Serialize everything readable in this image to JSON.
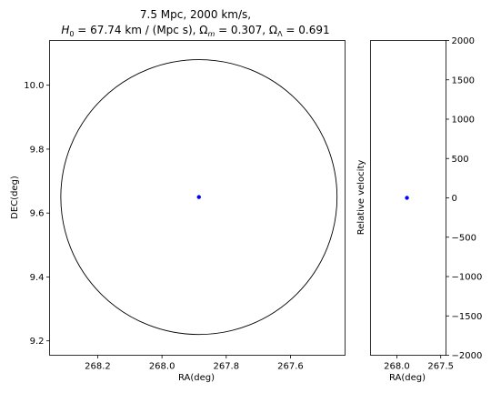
{
  "title": {
    "line1": "7.5 Mpc, 2000 km/s,",
    "line2_parts": {
      "h0": "H",
      "h0_sub": "0",
      "h0_rest": " = 67.74 km / (Mpc s), ",
      "om": "Ω",
      "om_sub": "m",
      "om_rest": " = 0.307, ",
      "ol": "Ω",
      "ol_sub": "Λ",
      "ol_rest": " = 0.691"
    }
  },
  "colors": {
    "point": "#0000ff",
    "circle": "#000000",
    "axes": "#000000"
  },
  "chart_data": [
    {
      "type": "scatter",
      "panel": "sky",
      "xlabel": "RA(deg)",
      "ylabel": "DEC(deg)",
      "xlim": [
        268.35,
        267.43
      ],
      "ylim": [
        9.155,
        10.14
      ],
      "x_inverted": true,
      "xticks": [
        268.2,
        268.0,
        267.8,
        267.6
      ],
      "xtick_labels": [
        "268.2",
        "268.0",
        "267.8",
        "267.6"
      ],
      "yticks": [
        9.2,
        9.4,
        9.6,
        9.8,
        10.0
      ],
      "ytick_labels": [
        "9.2",
        "9.4",
        "9.6",
        "9.8",
        "10.0"
      ],
      "points": [
        {
          "x": 267.885,
          "y": 9.65
        }
      ],
      "circle": {
        "center_x": 267.885,
        "center_y": 9.65,
        "radius_deg": 0.43
      },
      "grid": false
    },
    {
      "type": "scatter",
      "panel": "velocity",
      "xlabel": "RA(deg)",
      "ylabel": "Relative velocity",
      "xlim": [
        268.3,
        267.44
      ],
      "ylim": [
        -2000,
        2000
      ],
      "x_inverted": true,
      "xticks": [
        268.0,
        267.5
      ],
      "xtick_labels": [
        "268.0",
        "267.5"
      ],
      "yticks": [
        -2000,
        -1500,
        -1000,
        -500,
        0,
        500,
        1000,
        1500,
        2000
      ],
      "ytick_labels": [
        "−2000",
        "−1500",
        "−1000",
        "−500",
        "0",
        "500",
        "1000",
        "1500",
        "2000"
      ],
      "points": [
        {
          "x": 267.885,
          "y": 0
        }
      ],
      "grid": false
    }
  ]
}
